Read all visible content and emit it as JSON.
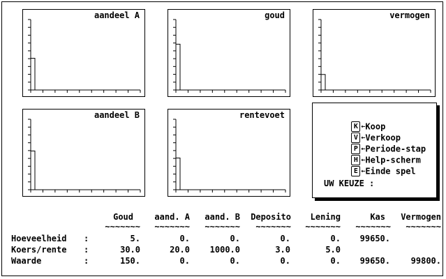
{
  "charts": [
    {
      "title": "aandeel A",
      "level": 0.45
    },
    {
      "title": "goud",
      "level": 0.65
    },
    {
      "title": "vermogen",
      "level": 0.22
    },
    {
      "title": "aandeel B",
      "level": 0.55
    },
    {
      "title": "rentevoet",
      "level": 0.45
    }
  ],
  "menu": {
    "items": [
      {
        "key": "K",
        "label": "Koop"
      },
      {
        "key": "V",
        "label": "Verkoop"
      },
      {
        "key": "P",
        "label": "Periode-stap"
      },
      {
        "key": "H",
        "label": "Help-scherm"
      },
      {
        "key": "E",
        "label": "Einde spel"
      }
    ],
    "arrow": "←",
    "prompt": "UW KEUZE :"
  },
  "table": {
    "columns": [
      "Goud",
      "aand. A",
      "aand. B",
      "Deposito",
      "Lening",
      "Kas",
      "Vermogen"
    ],
    "underline": "~~~~~~~",
    "colon": ":",
    "rows": [
      {
        "label": "Hoeveelheid",
        "values": [
          "5.",
          "0.",
          "0.",
          "0.",
          "0.",
          "99650.",
          ""
        ]
      },
      {
        "label": "Koers/rente",
        "values": [
          "30.0",
          "20.0",
          "1000.0",
          "3.0",
          "5.0",
          "",
          ""
        ]
      },
      {
        "label": "Waarde",
        "values": [
          "150.",
          "0.",
          "0.",
          "0.",
          "0.",
          "99650.",
          "99800."
        ]
      }
    ]
  }
}
